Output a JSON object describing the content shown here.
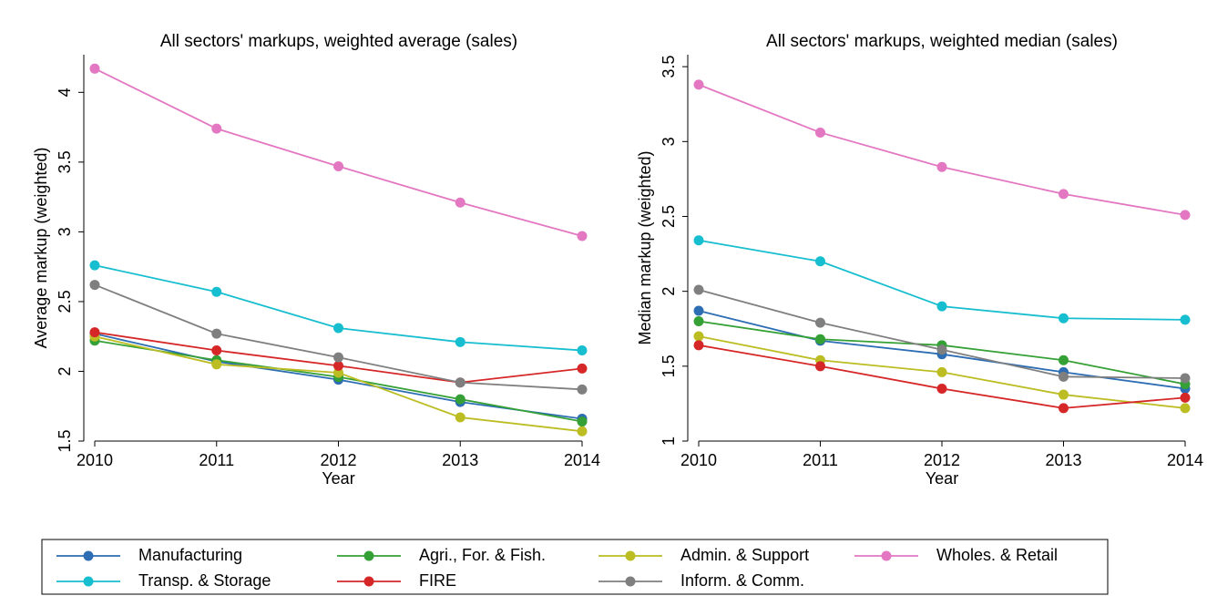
{
  "chart_data": [
    {
      "type": "line",
      "title": "All sectors' markups, weighted average (sales)",
      "xlabel": "Year",
      "ylabel": "Average markup (weighted)",
      "x": [
        2010,
        2011,
        2012,
        2013,
        2014
      ],
      "xlim": [
        2010,
        2014
      ],
      "xticks": [
        2010,
        2011,
        2012,
        2013,
        2014
      ],
      "ylim": [
        1.5,
        4.27
      ],
      "yticks": [
        1.5,
        2,
        2.5,
        3,
        3.5,
        4
      ],
      "legend": "bottom",
      "series": [
        {
          "name": "Manufacturing",
          "color": "#2c6db3",
          "values": [
            2.27,
            2.07,
            1.94,
            1.78,
            1.66
          ]
        },
        {
          "name": "Agri., For. & Fish.",
          "color": "#35a035",
          "values": [
            2.22,
            2.08,
            1.96,
            1.8,
            1.64
          ]
        },
        {
          "name": "Admin. & Support",
          "color": "#bcbd22",
          "values": [
            2.25,
            2.05,
            1.99,
            1.67,
            1.57
          ]
        },
        {
          "name": "Wholes. & Retail",
          "color": "#e377c2",
          "values": [
            4.17,
            3.74,
            3.47,
            3.21,
            2.97
          ]
        },
        {
          "name": "Transp. & Storage",
          "color": "#17becf",
          "values": [
            2.76,
            2.57,
            2.31,
            2.21,
            2.15
          ]
        },
        {
          "name": "FIRE",
          "color": "#d62728",
          "values": [
            2.28,
            2.15,
            2.04,
            1.92,
            2.02
          ]
        },
        {
          "name": "Inform. & Comm.",
          "color": "#7f7f7f",
          "values": [
            2.62,
            2.27,
            2.1,
            1.92,
            1.87
          ]
        }
      ]
    },
    {
      "type": "line",
      "title": "All sectors' markups, weighted median (sales)",
      "xlabel": "Year",
      "ylabel": "Median markup (weighted)",
      "x": [
        2010,
        2011,
        2012,
        2013,
        2014
      ],
      "xlim": [
        2010,
        2014
      ],
      "xticks": [
        2010,
        2011,
        2012,
        2013,
        2014
      ],
      "ylim": [
        1,
        3.58
      ],
      "yticks": [
        1,
        1.5,
        2,
        2.5,
        3,
        3.5
      ],
      "series": [
        {
          "color": "#2c6db3",
          "values": [
            1.87,
            1.67,
            1.58,
            1.46,
            1.35
          ]
        },
        {
          "color": "#35a035",
          "values": [
            1.8,
            1.68,
            1.64,
            1.54,
            1.38
          ]
        },
        {
          "color": "#bcbd22",
          "values": [
            1.7,
            1.54,
            1.46,
            1.31,
            1.22
          ]
        },
        {
          "color": "#e377c2",
          "values": [
            3.38,
            3.06,
            2.83,
            2.65,
            2.51
          ]
        },
        {
          "color": "#17becf",
          "values": [
            2.34,
            2.2,
            1.9,
            1.82,
            1.81
          ]
        },
        {
          "color": "#d62728",
          "values": [
            1.64,
            1.5,
            1.35,
            1.22,
            1.29
          ]
        },
        {
          "color": "#7f7f7f",
          "values": [
            2.01,
            1.79,
            1.61,
            1.43,
            1.42
          ]
        }
      ]
    }
  ]
}
